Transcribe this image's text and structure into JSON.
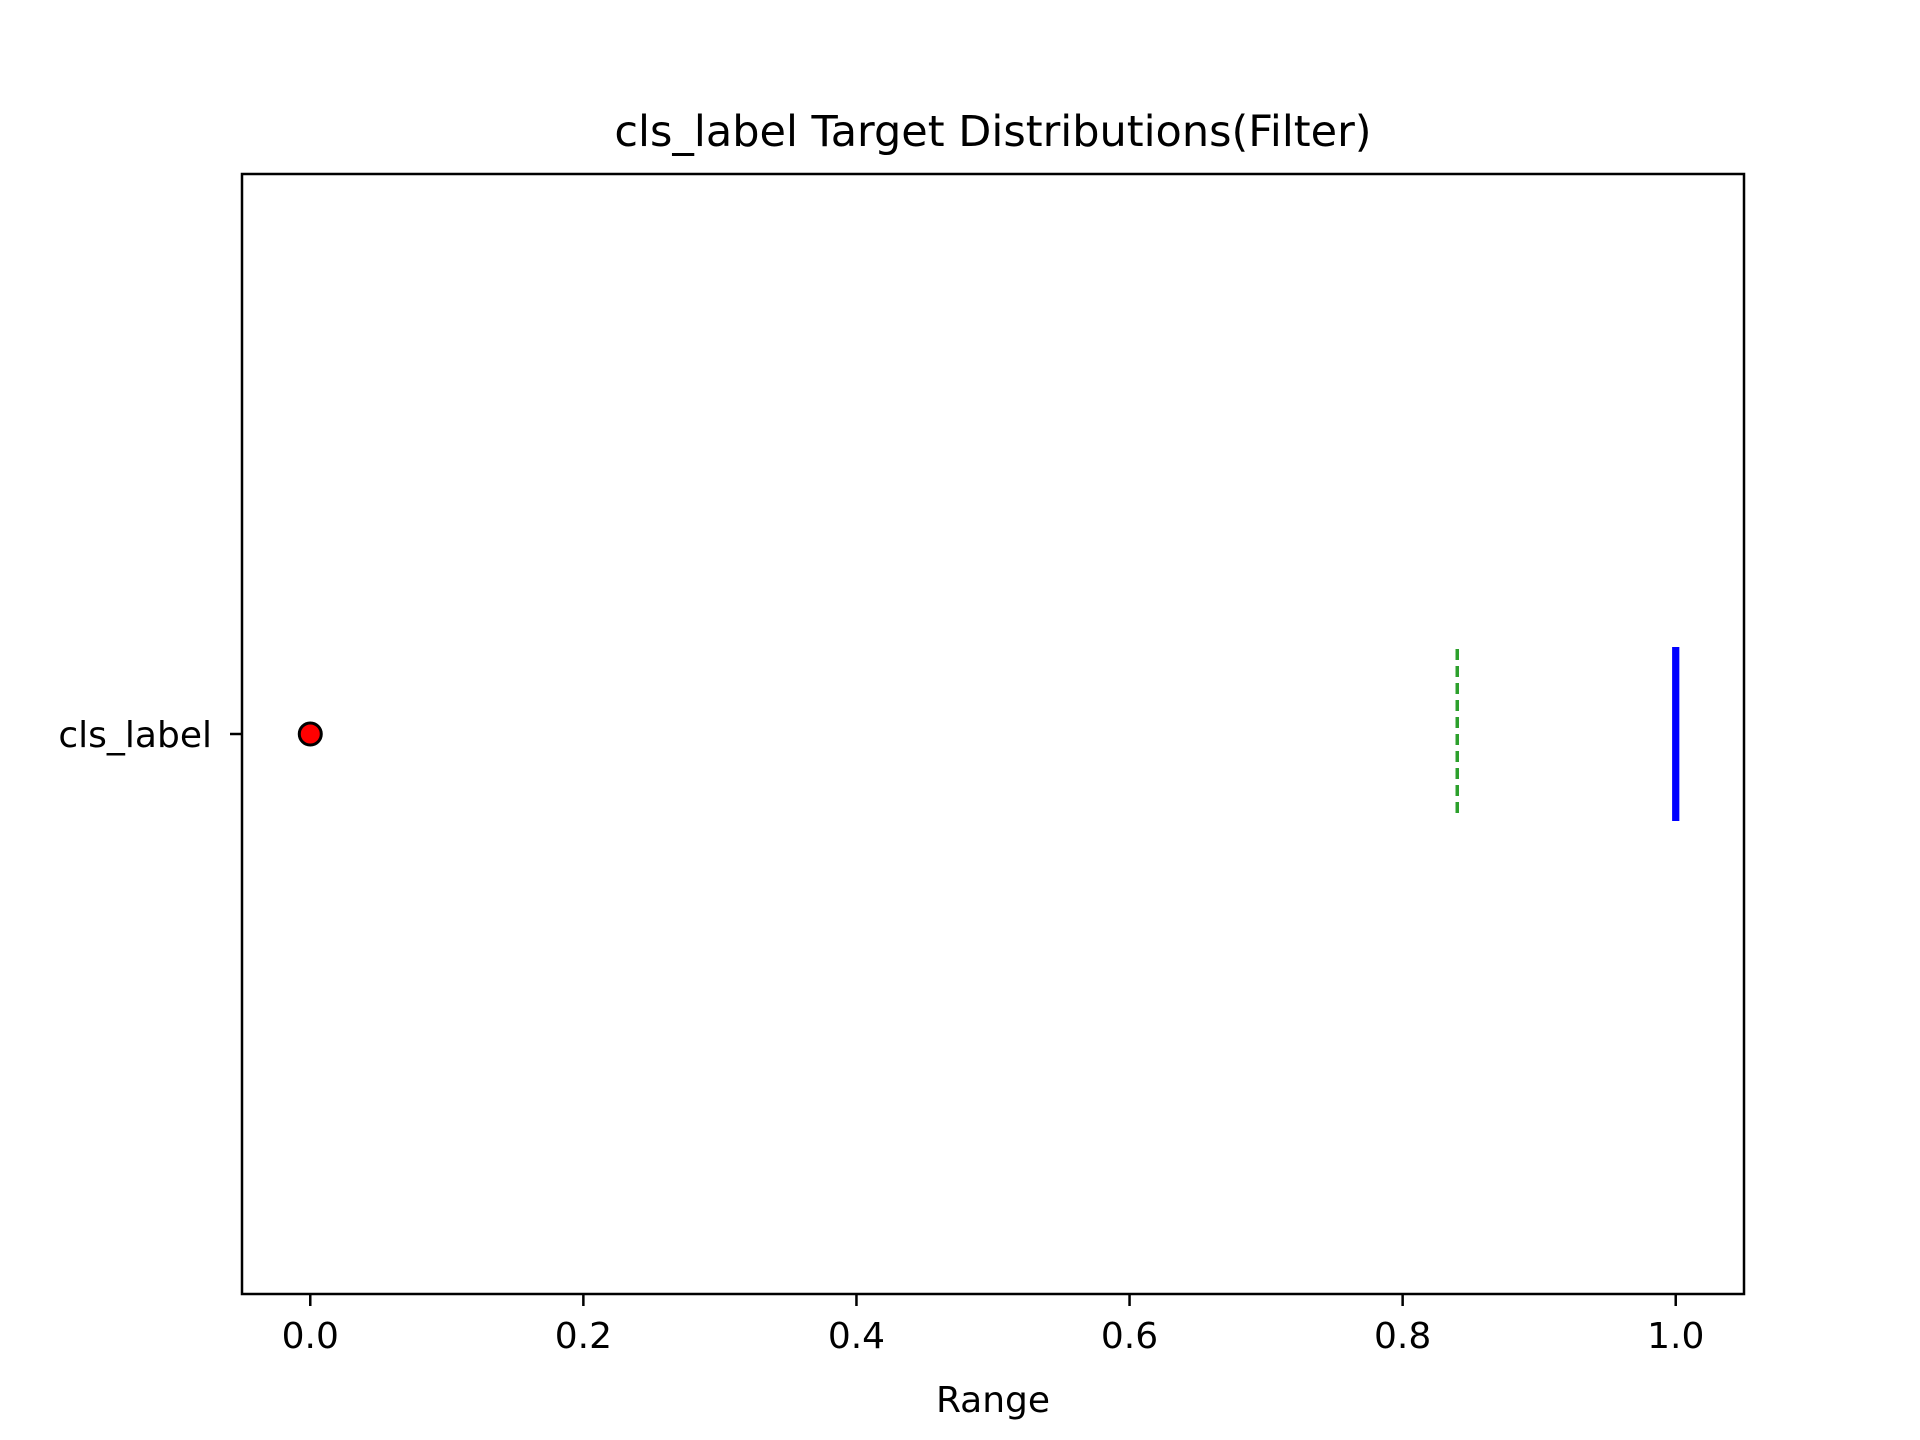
{
  "chart_data": {
    "type": "boxplot",
    "orientation": "horizontal",
    "title": "cls_label Target Distributions(Filter)",
    "xlabel": "Range",
    "ylabel": "",
    "xlim": [
      -0.05,
      1.05
    ],
    "xticks": [
      0.0,
      0.2,
      0.4,
      0.6,
      0.8,
      1.0
    ],
    "xtick_labels": [
      "0.0",
      "0.2",
      "0.4",
      "0.6",
      "0.8",
      "1.0"
    ],
    "categories": [
      "cls_label"
    ],
    "series": [
      {
        "name": "cls_label",
        "q1": 1.0,
        "median": 1.0,
        "q3": 1.0,
        "whisker_low": 1.0,
        "whisker_high": 1.0,
        "mean": 0.84,
        "outliers": [
          0.0
        ]
      }
    ],
    "grid": false,
    "colors": {
      "box": "#0000ff",
      "mean_line": "#2ca02c",
      "outlier_fill": "#ff0000",
      "outlier_edge": "#000000",
      "axes": "#000000"
    }
  }
}
